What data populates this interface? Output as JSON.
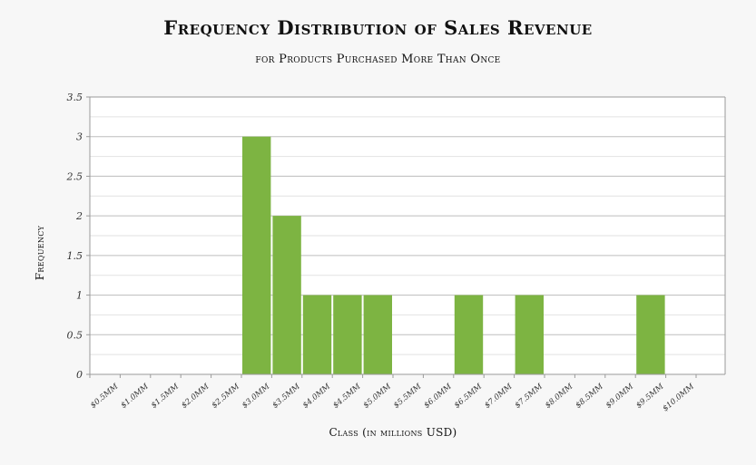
{
  "chart_data": {
    "type": "bar",
    "title": "Frequency Distribution of Sales Revenue",
    "subtitle": "for Products Purchased More Than Once",
    "xlabel": "Class (in millions USD)",
    "ylabel": "Frequency",
    "ylim": [
      0,
      3.5
    ],
    "yticks": [
      "0",
      "0.5",
      "1",
      "1.5",
      "2",
      "2.5",
      "3",
      "3.5"
    ],
    "categories": [
      "$0.5MM",
      "$1.0MM",
      "$1.5MM",
      "$2.0MM",
      "$2.5MM",
      "$3.0MM",
      "$3.5MM",
      "$4.0MM",
      "$4.5MM",
      "$5.0MM",
      "$5.5MM",
      "$6.0MM",
      "$6.5MM",
      "$7.0MM",
      "$7.5MM",
      "$8.0MM",
      "$8.5MM",
      "$9.0MM",
      "$9.5MM",
      "$10.0MM"
    ],
    "values": [
      0,
      0,
      0,
      0,
      0,
      3,
      2,
      1,
      1,
      1,
      0,
      0,
      1,
      0,
      1,
      0,
      0,
      0,
      1,
      0
    ],
    "grid": true,
    "bar_color": "#7db442"
  }
}
